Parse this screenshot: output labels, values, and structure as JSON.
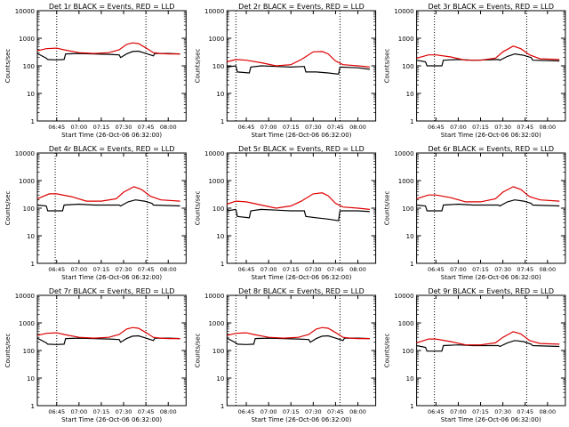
{
  "figure": {
    "colors": {
      "events": "#000000",
      "lld": "#dd0000",
      "background": "#ffffff"
    }
  },
  "chart_data": [
    {
      "type": "line",
      "title": "Det 1r BLACK = Events, RED = LLD",
      "xlabel": "Start Time (26-Oct-06 06:32:00)",
      "ylabel": "Counts/sec",
      "yscale": "log",
      "ylim": [
        1,
        10000
      ],
      "xlim": [
        "06:32",
        "08:12"
      ],
      "x_ticks": [
        "06:45",
        "07:00",
        "07:15",
        "07:30",
        "07:45",
        "08:00"
      ],
      "y_ticks": [
        "1",
        "10",
        "100",
        "1000",
        "10000"
      ],
      "vlines": [
        "06:45",
        "07:45"
      ],
      "series": [
        {
          "name": "Events",
          "x": [
            "06:32",
            "06:38",
            "06:39",
            "06:45",
            "06:50",
            "06:51",
            "07:00",
            "07:10",
            "07:20",
            "07:27",
            "07:28",
            "07:32",
            "07:36",
            "07:40",
            "07:45",
            "07:50",
            "07:51",
            "08:00",
            "08:08"
          ],
          "values": [
            280,
            190,
            170,
            165,
            170,
            270,
            280,
            270,
            260,
            250,
            200,
            270,
            330,
            340,
            280,
            230,
            280,
            280,
            270
          ]
        },
        {
          "name": "LLD",
          "x": [
            "06:32",
            "06:38",
            "06:45",
            "06:50",
            "07:00",
            "07:10",
            "07:20",
            "07:27",
            "07:32",
            "07:36",
            "07:40",
            "07:45",
            "07:50",
            "07:55",
            "08:00",
            "08:08"
          ],
          "values": [
            350,
            420,
            440,
            380,
            300,
            280,
            300,
            380,
            600,
            680,
            640,
            450,
            300,
            280,
            270,
            270
          ]
        }
      ]
    },
    {
      "type": "line",
      "title": "Det 2r BLACK = Events, RED = LLD",
      "xlabel": "Start Time (26-Oct-06 06:32:00)",
      "ylabel": "Counts/sec",
      "yscale": "log",
      "ylim": [
        1,
        10000
      ],
      "xlim": [
        "06:32",
        "08:12"
      ],
      "x_ticks": [
        "06:45",
        "07:00",
        "07:15",
        "07:30",
        "07:45",
        "08:00"
      ],
      "y_ticks": [
        "1",
        "10",
        "100",
        "1000",
        "10000"
      ],
      "vlines": [
        "06:38",
        "07:48"
      ],
      "series": [
        {
          "name": "Events",
          "x": [
            "06:32",
            "06:38",
            "06:39",
            "06:47",
            "06:48",
            "06:55",
            "07:05",
            "07:15",
            "07:24",
            "07:25",
            "07:32",
            "07:40",
            "07:47",
            "07:48",
            "08:00",
            "08:08"
          ],
          "values": [
            90,
            100,
            60,
            55,
            90,
            100,
            95,
            90,
            95,
            60,
            60,
            55,
            50,
            90,
            85,
            75
          ]
        },
        {
          "name": "LLD",
          "x": [
            "06:32",
            "06:38",
            "06:45",
            "06:55",
            "07:05",
            "07:15",
            "07:22",
            "07:30",
            "07:36",
            "07:40",
            "07:45",
            "07:50",
            "08:00",
            "08:08"
          ],
          "values": [
            140,
            170,
            160,
            130,
            100,
            110,
            170,
            320,
            330,
            270,
            150,
            110,
            100,
            90
          ]
        }
      ]
    },
    {
      "type": "line",
      "title": "Det 3r BLACK = Events, RED = LLD",
      "xlabel": "Start Time (26-Oct-06 06:32:00)",
      "ylabel": "Counts/sec",
      "yscale": "log",
      "ylim": [
        1,
        10000
      ],
      "xlim": [
        "06:32",
        "08:12"
      ],
      "x_ticks": [
        "06:45",
        "07:00",
        "07:15",
        "07:30",
        "07:45",
        "08:00"
      ],
      "y_ticks": [
        "1",
        "10",
        "100",
        "1000",
        "10000"
      ],
      "vlines": [
        "06:44",
        "07:46"
      ],
      "series": [
        {
          "name": "Events",
          "x": [
            "06:32",
            "06:38",
            "06:39",
            "06:49",
            "06:50",
            "07:00",
            "07:10",
            "07:20",
            "07:27",
            "07:28",
            "07:33",
            "07:38",
            "07:44",
            "07:49",
            "07:50",
            "08:08"
          ],
          "values": [
            160,
            140,
            100,
            100,
            160,
            170,
            160,
            165,
            170,
            160,
            220,
            270,
            240,
            200,
            160,
            150
          ]
        },
        {
          "name": "LLD",
          "x": [
            "06:32",
            "06:40",
            "06:45",
            "06:55",
            "07:05",
            "07:15",
            "07:25",
            "07:30",
            "07:37",
            "07:42",
            "07:48",
            "07:55",
            "08:08"
          ],
          "values": [
            190,
            250,
            250,
            210,
            160,
            160,
            190,
            320,
            520,
            420,
            250,
            180,
            170
          ]
        }
      ]
    },
    {
      "type": "line",
      "title": "Det 4r BLACK = Events, RED = LLD",
      "xlabel": "Start Time (26-Oct-06 06:32:00)",
      "ylabel": "Counts/sec",
      "yscale": "log",
      "ylim": [
        1,
        10000
      ],
      "xlim": [
        "06:32",
        "08:12"
      ],
      "x_ticks": [
        "06:45",
        "07:00",
        "07:15",
        "07:30",
        "07:45",
        "08:00"
      ],
      "y_ticks": [
        "1",
        "10",
        "100",
        "1000",
        "10000"
      ],
      "vlines": [
        "06:44",
        "07:46"
      ],
      "series": [
        {
          "name": "Events",
          "x": [
            "06:32",
            "06:38",
            "06:39",
            "06:49",
            "06:50",
            "07:00",
            "07:10",
            "07:20",
            "07:27",
            "07:28",
            "07:33",
            "07:38",
            "07:44",
            "07:49",
            "07:50",
            "08:08"
          ],
          "values": [
            130,
            120,
            80,
            80,
            130,
            140,
            130,
            130,
            130,
            120,
            170,
            200,
            180,
            150,
            130,
            120
          ]
        },
        {
          "name": "LLD",
          "x": [
            "06:32",
            "06:40",
            "06:45",
            "06:55",
            "07:05",
            "07:15",
            "07:25",
            "07:30",
            "07:37",
            "07:42",
            "07:48",
            "07:55",
            "08:08"
          ],
          "values": [
            220,
            330,
            330,
            260,
            180,
            180,
            220,
            380,
            600,
            480,
            270,
            200,
            180
          ]
        }
      ]
    },
    {
      "type": "line",
      "title": "Det 5r BLACK = Events, RED = LLD",
      "xlabel": "Start Time (26-Oct-06 06:32:00)",
      "ylabel": "Counts/sec",
      "yscale": "log",
      "ylim": [
        1,
        10000
      ],
      "xlim": [
        "06:32",
        "08:12"
      ],
      "x_ticks": [
        "06:45",
        "07:00",
        "07:15",
        "07:30",
        "07:45",
        "08:00"
      ],
      "y_ticks": [
        "1",
        "10",
        "100",
        "1000",
        "10000"
      ],
      "vlines": [
        "06:38",
        "07:48"
      ],
      "series": [
        {
          "name": "Events",
          "x": [
            "06:32",
            "06:38",
            "06:39",
            "06:47",
            "06:48",
            "06:55",
            "07:05",
            "07:15",
            "07:24",
            "07:25",
            "07:32",
            "07:40",
            "07:47",
            "07:48",
            "08:00",
            "08:08"
          ],
          "values": [
            80,
            90,
            50,
            45,
            80,
            90,
            85,
            80,
            80,
            50,
            45,
            40,
            35,
            80,
            80,
            75
          ]
        },
        {
          "name": "LLD",
          "x": [
            "06:32",
            "06:38",
            "06:45",
            "06:55",
            "07:05",
            "07:15",
            "07:22",
            "07:30",
            "07:36",
            "07:40",
            "07:45",
            "07:50",
            "08:00",
            "08:08"
          ],
          "values": [
            140,
            180,
            170,
            130,
            100,
            120,
            180,
            330,
            360,
            280,
            150,
            110,
            100,
            90
          ]
        }
      ]
    },
    {
      "type": "line",
      "title": "Det 6r BLACK = Events, RED = LLD",
      "xlabel": "Start Time (26-Oct-06 06:32:00)",
      "ylabel": "Counts/sec",
      "yscale": "log",
      "ylim": [
        1,
        10000
      ],
      "xlim": [
        "06:32",
        "08:12"
      ],
      "x_ticks": [
        "06:45",
        "07:00",
        "07:15",
        "07:30",
        "07:45",
        "08:00"
      ],
      "y_ticks": [
        "1",
        "10",
        "100",
        "1000",
        "10000"
      ],
      "vlines": [
        "06:44",
        "07:46"
      ],
      "series": [
        {
          "name": "Events",
          "x": [
            "06:32",
            "06:38",
            "06:39",
            "06:49",
            "06:50",
            "07:00",
            "07:10",
            "07:20",
            "07:27",
            "07:28",
            "07:33",
            "07:38",
            "07:44",
            "07:49",
            "07:50",
            "08:08"
          ],
          "values": [
            130,
            120,
            80,
            80,
            130,
            140,
            130,
            130,
            130,
            120,
            170,
            200,
            180,
            150,
            130,
            120
          ]
        },
        {
          "name": "LLD",
          "x": [
            "06:32",
            "06:40",
            "06:45",
            "06:55",
            "07:05",
            "07:15",
            "07:25",
            "07:30",
            "07:37",
            "07:42",
            "07:48",
            "07:55",
            "08:08"
          ],
          "values": [
            220,
            300,
            300,
            240,
            170,
            170,
            220,
            380,
            600,
            480,
            260,
            200,
            180
          ]
        }
      ]
    },
    {
      "type": "line",
      "title": "Det 7r BLACK = Events, RED = LLD",
      "xlabel": "Start Time (26-Oct-06 06:32:00)",
      "ylabel": "Counts/sec",
      "yscale": "log",
      "ylim": [
        1,
        10000
      ],
      "xlim": [
        "06:32",
        "08:12"
      ],
      "x_ticks": [
        "06:45",
        "07:00",
        "07:15",
        "07:30",
        "07:45",
        "08:00"
      ],
      "y_ticks": [
        "1",
        "10",
        "100",
        "1000",
        "10000"
      ],
      "vlines": [
        "06:45",
        "07:45"
      ],
      "series": [
        {
          "name": "Events",
          "x": [
            "06:32",
            "06:38",
            "06:39",
            "06:45",
            "06:50",
            "06:51",
            "07:00",
            "07:10",
            "07:20",
            "07:27",
            "07:28",
            "07:32",
            "07:36",
            "07:40",
            "07:45",
            "07:50",
            "07:51",
            "08:00",
            "08:08"
          ],
          "values": [
            280,
            190,
            170,
            165,
            170,
            270,
            280,
            270,
            260,
            250,
            200,
            270,
            330,
            340,
            280,
            230,
            280,
            280,
            270
          ]
        },
        {
          "name": "LLD",
          "x": [
            "06:32",
            "06:38",
            "06:45",
            "06:50",
            "07:00",
            "07:10",
            "07:20",
            "07:27",
            "07:32",
            "07:36",
            "07:40",
            "07:45",
            "07:50",
            "07:55",
            "08:00",
            "08:08"
          ],
          "values": [
            350,
            420,
            440,
            380,
            300,
            280,
            300,
            380,
            600,
            680,
            640,
            450,
            300,
            280,
            270,
            270
          ]
        }
      ]
    },
    {
      "type": "line",
      "title": "Det 8r BLACK = Events, RED = LLD",
      "xlabel": "Start Time (26-Oct-06 06:32:00)",
      "ylabel": "Counts/sec",
      "yscale": "log",
      "ylim": [
        1,
        10000
      ],
      "xlim": [
        "06:32",
        "08:12"
      ],
      "x_ticks": [
        "06:45",
        "07:00",
        "07:15",
        "07:30",
        "07:45",
        "08:00"
      ],
      "y_ticks": [
        "1",
        "10",
        "100",
        "1000",
        "10000"
      ],
      "vlines": [
        "06:38",
        "07:48"
      ],
      "series": [
        {
          "name": "Events",
          "x": [
            "06:32",
            "06:38",
            "06:39",
            "06:45",
            "06:50",
            "06:51",
            "07:00",
            "07:10",
            "07:20",
            "07:27",
            "07:28",
            "07:32",
            "07:36",
            "07:40",
            "07:45",
            "07:50",
            "07:51",
            "08:00",
            "08:08"
          ],
          "values": [
            280,
            190,
            170,
            165,
            170,
            270,
            280,
            270,
            260,
            250,
            200,
            270,
            330,
            340,
            280,
            230,
            280,
            280,
            270
          ]
        },
        {
          "name": "LLD",
          "x": [
            "06:32",
            "06:38",
            "06:45",
            "06:50",
            "07:00",
            "07:10",
            "07:20",
            "07:27",
            "07:32",
            "07:36",
            "07:40",
            "07:45",
            "07:50",
            "07:55",
            "08:00",
            "08:08"
          ],
          "values": [
            350,
            420,
            440,
            380,
            300,
            280,
            300,
            380,
            600,
            680,
            640,
            450,
            300,
            280,
            270,
            270
          ]
        }
      ]
    },
    {
      "type": "line",
      "title": "Det 9r BLACK = Events, RED = LLD",
      "xlabel": "Start Time (26-Oct-06 06:32:00)",
      "ylabel": "Counts/sec",
      "yscale": "log",
      "ylim": [
        1,
        10000
      ],
      "xlim": [
        "06:32",
        "08:12"
      ],
      "x_ticks": [
        "06:45",
        "07:00",
        "07:15",
        "07:30",
        "07:45",
        "08:00"
      ],
      "y_ticks": [
        "1",
        "10",
        "100",
        "1000",
        "10000"
      ],
      "vlines": [
        "06:44",
        "07:46"
      ],
      "series": [
        {
          "name": "Events",
          "x": [
            "06:32",
            "06:38",
            "06:39",
            "06:49",
            "06:50",
            "07:00",
            "07:10",
            "07:20",
            "07:27",
            "07:28",
            "07:33",
            "07:38",
            "07:44",
            "07:49",
            "07:50",
            "08:08"
          ],
          "values": [
            150,
            130,
            95,
            95,
            150,
            160,
            150,
            150,
            150,
            140,
            190,
            230,
            210,
            170,
            150,
            140
          ]
        },
        {
          "name": "LLD",
          "x": [
            "06:32",
            "06:40",
            "06:45",
            "06:55",
            "07:05",
            "07:15",
            "07:25",
            "07:30",
            "07:37",
            "07:42",
            "07:48",
            "07:55",
            "08:08"
          ],
          "values": [
            190,
            260,
            260,
            210,
            160,
            160,
            190,
            300,
            480,
            400,
            230,
            180,
            170
          ]
        }
      ]
    }
  ]
}
